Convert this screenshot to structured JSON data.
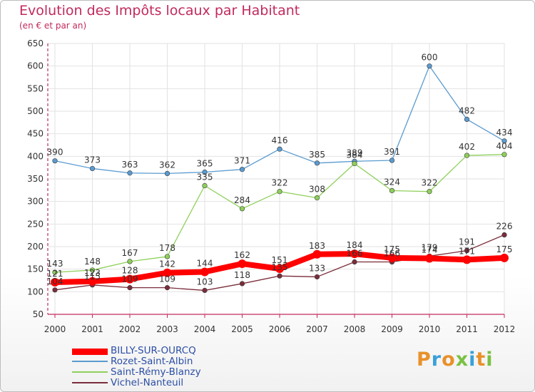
{
  "header": {
    "title": "Evolution des Impôts locaux par Habitant",
    "subtitle": "(en € et par an)"
  },
  "logo": {
    "text": "Proxiti"
  },
  "colors": {
    "title": "#c22a5a",
    "axis": "#c22a5a",
    "legend_text": "#2c4fa5"
  },
  "chart_data": {
    "type": "line",
    "x": [
      "2000",
      "2001",
      "2002",
      "2003",
      "2004",
      "2005",
      "2006",
      "2007",
      "2008",
      "2009",
      "2010",
      "2011",
      "2012"
    ],
    "ylim": [
      50,
      650
    ],
    "yticks": [
      50,
      100,
      150,
      200,
      250,
      300,
      350,
      400,
      450,
      500,
      550,
      600,
      650
    ],
    "grid": true,
    "legend_position": "bottom-left",
    "series": [
      {
        "name": "BILLY-SUR-OURCQ",
        "color": "#ff0000",
        "values": [
          121,
          123,
          128,
          142,
          144,
          162,
          151,
          183,
          184,
          175,
          174,
          171,
          175
        ]
      },
      {
        "name": "Rozet-Saint-Albin",
        "color": "#5b9bd0",
        "values": [
          390,
          373,
          363,
          362,
          365,
          371,
          416,
          385,
          389,
          391,
          600,
          482,
          434
        ]
      },
      {
        "name": "Saint-Rémy-Blanzy",
        "color": "#8ed05a",
        "values": [
          143,
          148,
          167,
          178,
          335,
          284,
          322,
          308,
          384,
          324,
          322,
          402,
          404
        ]
      },
      {
        "name": "Vichel-Nanteuil",
        "color": "#7a2d3b",
        "values": [
          104,
          115,
          109,
          109,
          103,
          118,
          135,
          133,
          166,
          166,
          179,
          191,
          226
        ]
      }
    ]
  }
}
